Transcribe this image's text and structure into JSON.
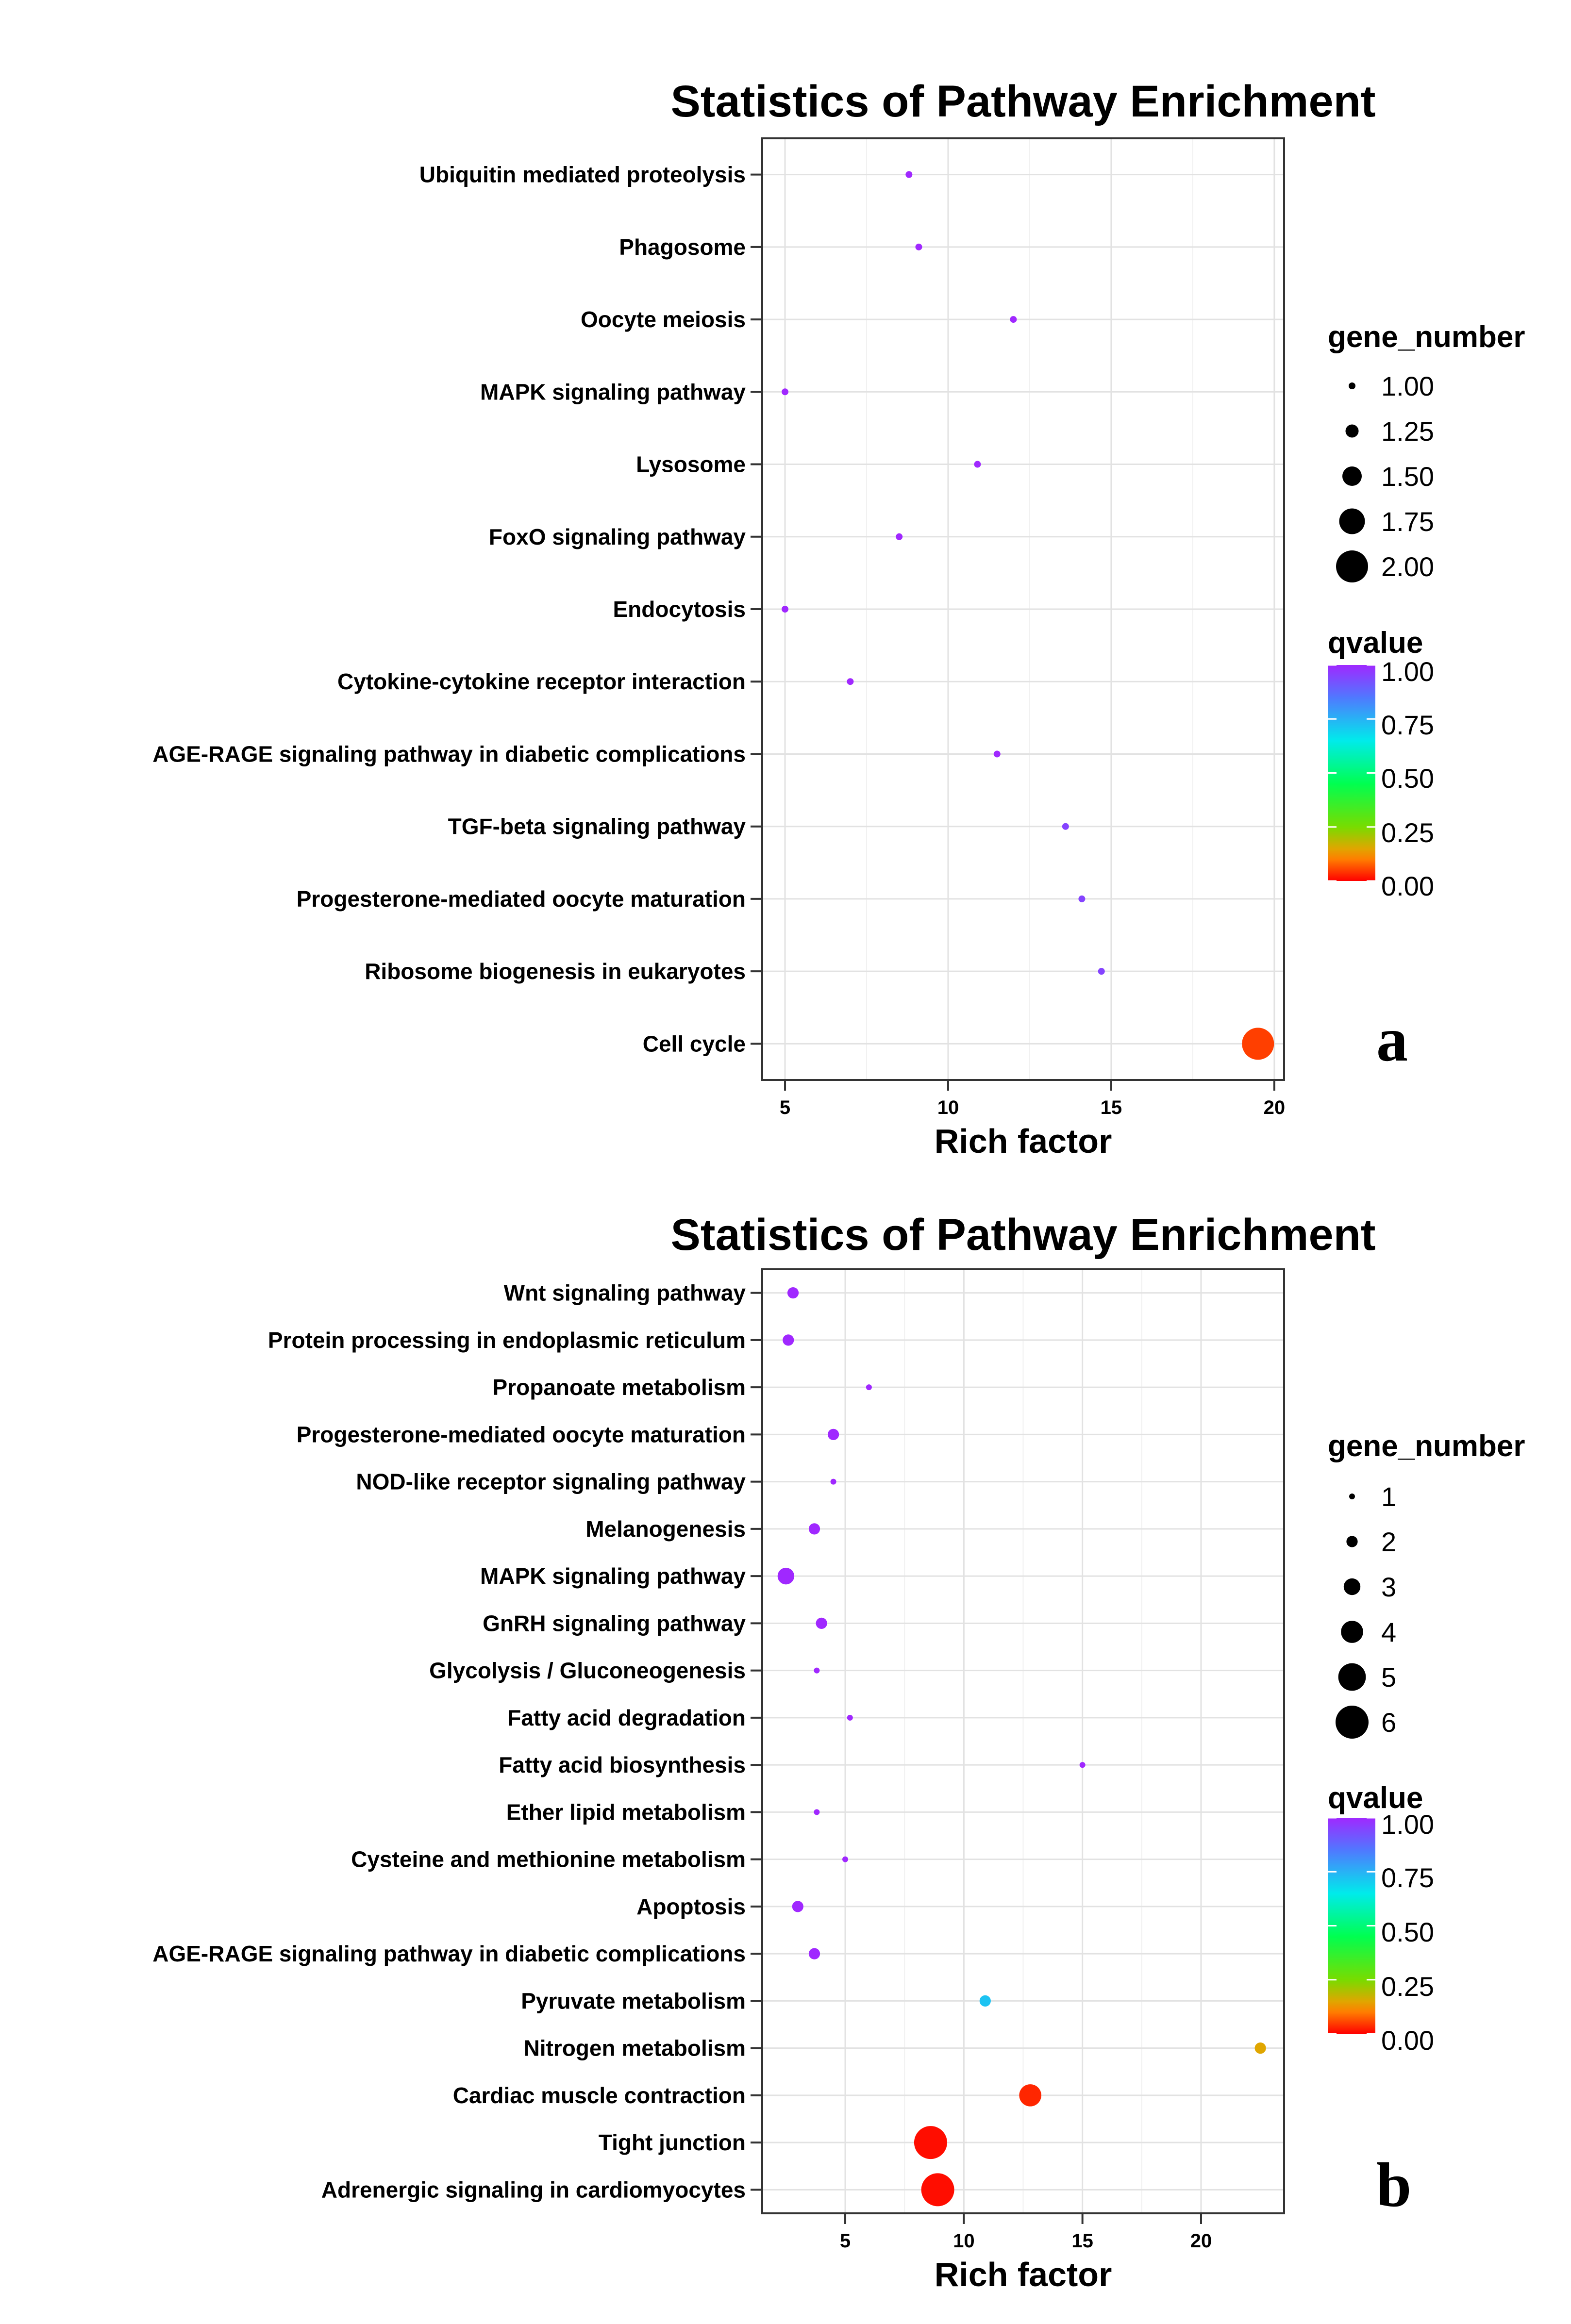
{
  "chart_data": [
    {
      "type": "scatter",
      "title": "Statistics of Pathway Enrichment",
      "xlabel": "Rich factor",
      "ylabel": "",
      "panel_label": "a",
      "xlim": [
        4.3,
        20.3
      ],
      "x_ticks": [
        5,
        10,
        15,
        20
      ],
      "categories": [
        "Ubiquitin mediated proteolysis",
        "Phagosome",
        "Oocyte meiosis",
        "MAPK signaling pathway",
        "Lysosome",
        "FoxO signaling pathway",
        "Endocytosis",
        "Cytokine-cytokine receptor interaction",
        "AGE-RAGE signaling pathway in diabetic complications",
        "TGF-beta signaling pathway",
        "Progesterone-mediated oocyte maturation",
        "Ribosome biogenesis in eukaryotes",
        "Cell cycle"
      ],
      "rich_factor": [
        8.8,
        9.1,
        12.0,
        5.0,
        10.9,
        8.5,
        5.0,
        7.0,
        11.5,
        13.6,
        14.1,
        14.7,
        19.5
      ],
      "gene_number": [
        1,
        1,
        1,
        1,
        1,
        1,
        1,
        1,
        1,
        1,
        1,
        1,
        2
      ],
      "qvalue": [
        1.0,
        1.0,
        1.0,
        1.0,
        1.0,
        1.0,
        1.0,
        1.0,
        1.0,
        0.95,
        0.95,
        0.95,
        0.05
      ],
      "size_legend": {
        "title": "gene_number",
        "values": [
          1.0,
          1.25,
          1.5,
          1.75,
          2.0
        ],
        "labels": [
          "1.00",
          "1.25",
          "1.50",
          "1.75",
          "2.00"
        ]
      },
      "color_legend": {
        "title": "qvalue",
        "labels": [
          "1.00",
          "0.75",
          "0.50",
          "0.25",
          "0.00"
        ]
      },
      "grid": true
    },
    {
      "type": "scatter",
      "title": "Statistics of Pathway Enrichment",
      "xlabel": "Rich factor",
      "ylabel": "",
      "panel_label": "b",
      "xlim": [
        1.5,
        23.5
      ],
      "x_ticks": [
        5,
        10,
        15,
        20
      ],
      "categories": [
        "Wnt signaling pathway",
        "Protein processing in endoplasmic reticulum",
        "Propanoate metabolism",
        "Progesterone-mediated oocyte maturation",
        "NOD-like receptor signaling pathway",
        "Melanogenesis",
        "MAPK signaling pathway",
        "GnRH signaling pathway",
        "Glycolysis / Gluconeogenesis",
        "Fatty acid degradation",
        "Fatty acid biosynthesis",
        "Ether lipid metabolism",
        "Cysteine and methionine metabolism",
        "Apoptosis",
        "AGE-RAGE signaling pathway in diabetic complications",
        "Pyruvate metabolism",
        "Nitrogen metabolism",
        "Cardiac muscle contraction",
        "Tight junction",
        "Adrenergic signaling in cardiomyocytes"
      ],
      "rich_factor": [
        2.8,
        2.6,
        6.0,
        4.5,
        4.5,
        3.7,
        2.5,
        4.0,
        3.8,
        5.2,
        15.0,
        3.8,
        5.0,
        3.0,
        3.7,
        10.9,
        22.5,
        12.8,
        8.6,
        8.9
      ],
      "gene_number": [
        2,
        2,
        1,
        2,
        1,
        2,
        3,
        2,
        1,
        1,
        1,
        1,
        1,
        2,
        2,
        2,
        2,
        4,
        6,
        6
      ],
      "qvalue": [
        1.0,
        1.0,
        1.0,
        1.0,
        1.0,
        1.0,
        1.0,
        1.0,
        1.0,
        1.0,
        1.0,
        1.0,
        1.0,
        1.0,
        1.0,
        0.72,
        0.15,
        0.03,
        0.01,
        0.01
      ],
      "size_legend": {
        "title": "gene_number",
        "values": [
          1,
          2,
          3,
          4,
          5,
          6
        ],
        "labels": [
          "1",
          "2",
          "3",
          "4",
          "5",
          "6"
        ]
      },
      "color_legend": {
        "title": "qvalue",
        "labels": [
          "1.00",
          "0.75",
          "0.50",
          "0.25",
          "0.00"
        ]
      },
      "grid": true
    }
  ]
}
